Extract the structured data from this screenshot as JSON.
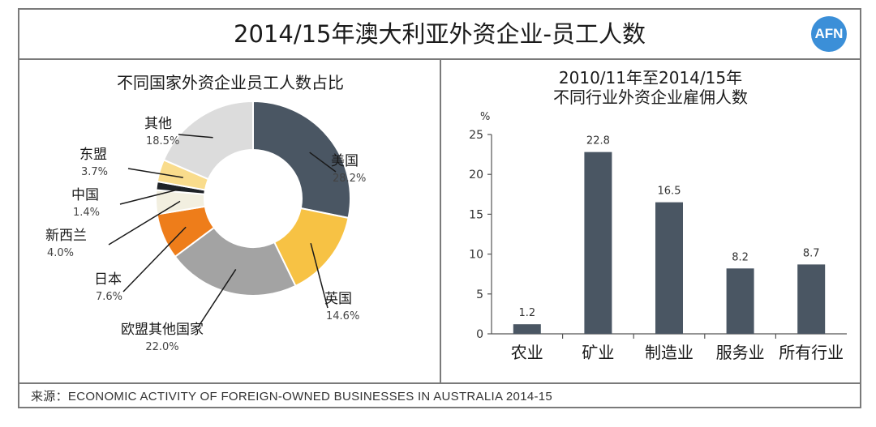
{
  "header": {
    "title": "2014/15年澳大利亚外资企业-员工人数",
    "logo_text": "AFN",
    "logo_color": "#3b8fd8"
  },
  "footer": {
    "source": "来源：ECONOMIC ACTIVITY OF FOREIGN-OWNED BUSINESSES IN AUSTRALIA 2014-15"
  },
  "chart_data": [
    {
      "type": "pie",
      "title": "不同国家外资企业员工人数占比",
      "donut": true,
      "slices": [
        {
          "label": "美国",
          "value": 28.2,
          "display": "28.2%",
          "color": "#4a5663"
        },
        {
          "label": "英国",
          "value": 14.6,
          "display": "14.6%",
          "color": "#f7c244"
        },
        {
          "label": "欧盟其他国家",
          "value": 22.0,
          "display": "22.0%",
          "color": "#a3a3a3"
        },
        {
          "label": "日本",
          "value": 7.6,
          "display": "7.6%",
          "color": "#ee7d1a"
        },
        {
          "label": "新西兰",
          "value": 4.0,
          "display": "4.0%",
          "color": "#f2efe0"
        },
        {
          "label": "中国",
          "value": 1.4,
          "display": "1.4%",
          "color": "#1f2328"
        },
        {
          "label": "东盟",
          "value": 3.7,
          "display": "3.7%",
          "color": "#f9dc8c"
        },
        {
          "label": "其他",
          "value": 18.5,
          "display": "18.5%",
          "color": "#dcdcdc"
        }
      ]
    },
    {
      "type": "bar",
      "title": "2010/11年至2014/15年",
      "subtitle": "不同行业外资企业雇佣人数",
      "ylabel": "%",
      "categories": [
        "农业",
        "矿业",
        "制造业",
        "服务业",
        "所有行业"
      ],
      "values": [
        1.2,
        22.8,
        16.5,
        8.2,
        8.7
      ],
      "value_labels": [
        "1.2",
        "22.8",
        "16.5",
        "8.2",
        "8.7"
      ],
      "ylim": [
        0,
        25
      ],
      "yticks": [
        "0",
        "5",
        "10",
        "15",
        "20",
        "25"
      ],
      "bar_color": "#4a5663",
      "grid": false
    }
  ]
}
